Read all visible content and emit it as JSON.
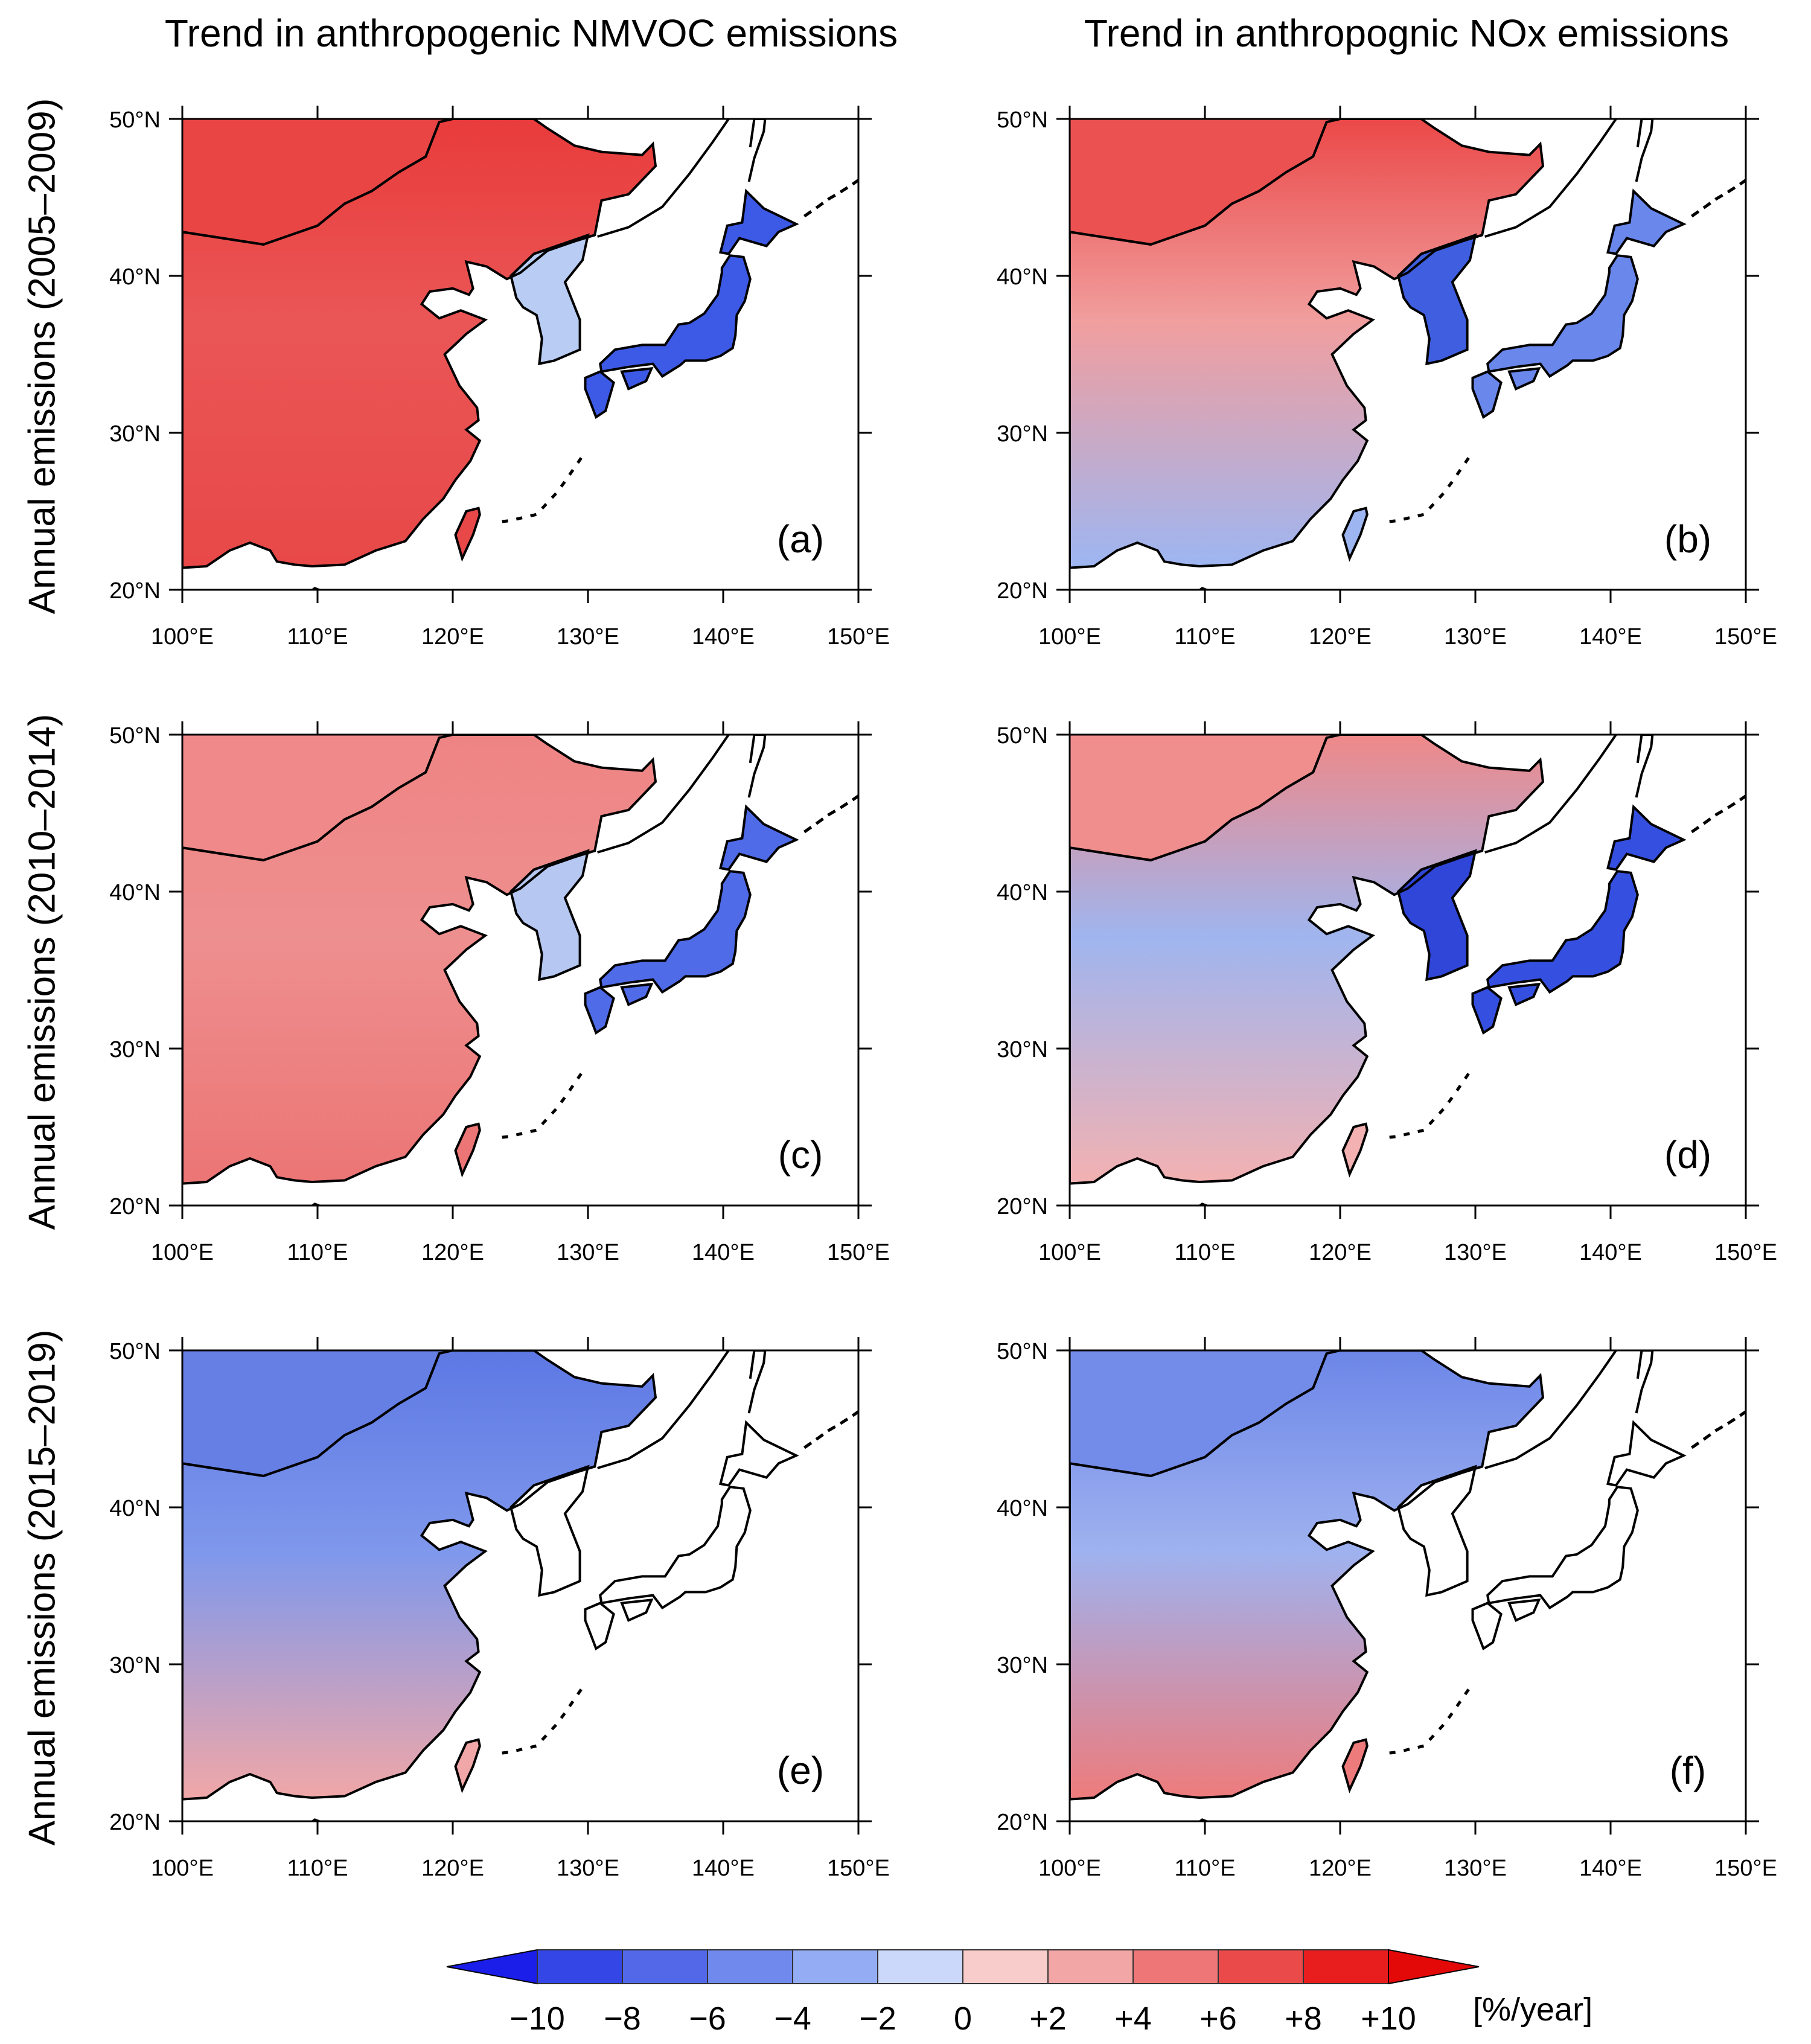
{
  "columns": [
    {
      "title": "Trend in anthropogenic NMVOC emissions"
    },
    {
      "title": "Trend in anthropognic NOx emissions"
    }
  ],
  "rows": [
    {
      "label": "Annual emissions (2005–2009)"
    },
    {
      "label": "Annual emissions (2010–2014)"
    },
    {
      "label": "Annual emissions (2015–2019)"
    }
  ],
  "axes": {
    "lat_ticks": [
      "50°N",
      "40°N",
      "30°N",
      "20°N"
    ],
    "lon_ticks": [
      "100°E",
      "110°E",
      "120°E",
      "130°E",
      "140°E",
      "150°E"
    ],
    "lat_range": [
      20,
      50
    ],
    "lon_range": [
      100,
      150
    ]
  },
  "panels": [
    {
      "label": "(a)",
      "species": "NMVOC",
      "period": "2005–2009",
      "china_north": "#e93b3b",
      "china_central": "#ea5656",
      "china_south": "#e84848",
      "korea": "#b9cdf4",
      "japan": "#3d5ae6"
    },
    {
      "label": "(b)",
      "species": "NOx",
      "period": "2005–2009",
      "china_north": "#eb4848",
      "china_central": "#f19e9e",
      "china_south": "#9db6f2",
      "korea": "#3f5fe0",
      "japan": "#6a87ec"
    },
    {
      "label": "(c)",
      "species": "NMVOC",
      "period": "2010–2014",
      "china_north": "#ef8484",
      "china_central": "#ee8f8f",
      "china_south": "#ec7575",
      "korea": "#b6c8f2",
      "japan": "#4f6be8"
    },
    {
      "label": "(d)",
      "species": "NOx",
      "period": "2010–2014",
      "china_north": "#ef8888",
      "china_central": "#9fb5ef",
      "china_south": "#f3b1b1",
      "korea": "#2f46d8",
      "japan": "#3550e0"
    },
    {
      "label": "(e)",
      "species": "NMVOC",
      "period": "2015–2019",
      "china_north": "#5d78e4",
      "china_central": "#7f98ec",
      "china_south": "#f1a7a7",
      "korea": "#ffffff",
      "japan": "#ffffff"
    },
    {
      "label": "(f)",
      "species": "NOx",
      "period": "2015–2019",
      "china_north": "#6c86e8",
      "china_central": "#9fb2ef",
      "china_south": "#ee7b7b",
      "korea": "#ffffff",
      "japan": "#ffffff"
    }
  ],
  "colorbar": {
    "ticks": [
      "−10",
      "−8",
      "−6",
      "−4",
      "−2",
      "0",
      "+2",
      "+4",
      "+6",
      "+8",
      "+10"
    ],
    "unit": "[%/year]",
    "colors": [
      "#1a1ee8",
      "#3446e6",
      "#5368e8",
      "#7089ec",
      "#94acf3",
      "#cbd8f9",
      "#f9cccc",
      "#f3a6a6",
      "#ee7676",
      "#ea4a4a",
      "#e81e1e",
      "#e40909"
    ],
    "under_color": "#1a1ee8",
    "over_color": "#e40909"
  }
}
